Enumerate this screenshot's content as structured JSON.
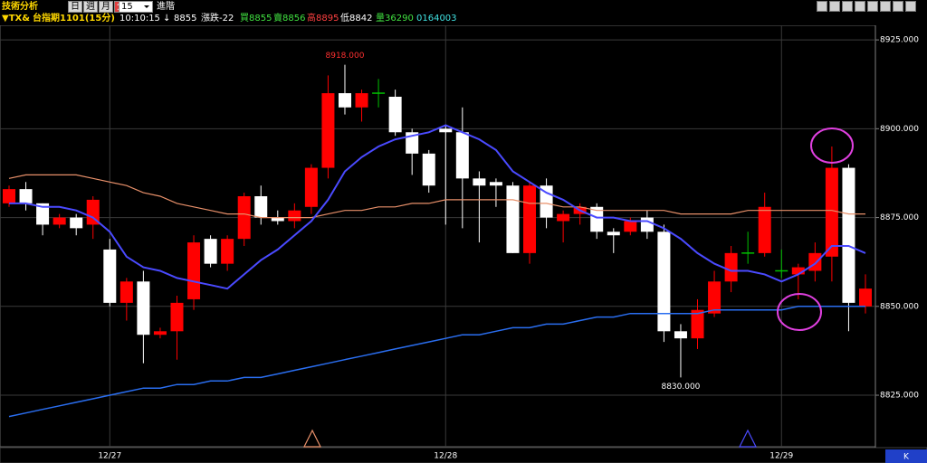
{
  "header": {
    "title": "技術分析",
    "periods": [
      "日",
      "週",
      "月",
      "分"
    ],
    "interval": "15",
    "advanced": "進階",
    "symbol": "TX&",
    "name": "台指期1101(15分)",
    "time": "10:10:15",
    "arrow": "↓",
    "price": "8855",
    "change": "漲跌-22",
    "bid": "買8855",
    "ask": "賣8856",
    "high": "高8895",
    "low": "低8842",
    "volume": "量36290",
    "code": "0164003"
  },
  "chart_data": {
    "type": "candlestick",
    "categories": [
      null,
      null,
      null,
      null,
      null,
      null,
      "12/27",
      null,
      null,
      null,
      null,
      null,
      null,
      null,
      null,
      null,
      null,
      null,
      null,
      null,
      null,
      null,
      null,
      null,
      null,
      null,
      "12/28",
      null,
      null,
      null,
      null,
      null,
      null,
      null,
      null,
      null,
      null,
      null,
      null,
      null,
      null,
      null,
      null,
      null,
      null,
      null,
      "12/29",
      null,
      null,
      null,
      null,
      null
    ],
    "open": [
      8879,
      8883,
      8879,
      8873,
      8875,
      8873,
      8866,
      8851,
      8857,
      8842,
      8843,
      8852,
      8869,
      8862,
      8869,
      8881,
      8875,
      8874,
      8878,
      8889,
      8910,
      8906,
      8910,
      8909,
      8899,
      8893,
      8900,
      8899,
      8886,
      8885,
      8884,
      8865,
      8884,
      8874,
      8876,
      8878,
      8871,
      8871,
      8875,
      8871,
      8843,
      8841,
      8848,
      8857,
      8865,
      8865,
      8860,
      8859,
      8860,
      8864,
      8889,
      8850
    ],
    "high": [
      8884,
      8885,
      8879,
      8876,
      8876,
      8881,
      8869,
      8858,
      8860,
      8844,
      8853,
      8870,
      8870,
      8870,
      8882,
      8884,
      8877,
      8879,
      8890,
      8915,
      8918,
      8911,
      8914,
      8911,
      8900,
      8894,
      8901,
      8906,
      8888,
      8886,
      8885,
      8885,
      8886,
      8877,
      8879,
      8879,
      8872,
      8875,
      8877,
      8873,
      8845,
      8852,
      8860,
      8867,
      8871,
      8882,
      8866,
      8862,
      8868,
      8895,
      8890,
      8859
    ],
    "low": [
      8878,
      8877,
      8870,
      8872,
      8870,
      8869,
      8850,
      8846,
      8834,
      8841,
      8835,
      8849,
      8861,
      8860,
      8867,
      8873,
      8873,
      8872,
      8876,
      8886,
      8904,
      8902,
      8906,
      8898,
      8887,
      8882,
      8873,
      8872,
      8868,
      8878,
      8865,
      8862,
      8872,
      8868,
      8873,
      8869,
      8865,
      8870,
      8869,
      8840,
      8830,
      8838,
      8847,
      8854,
      8862,
      8864,
      8858,
      8852,
      8857,
      8857,
      8843,
      8848
    ],
    "close": [
      8883,
      8879,
      8873,
      8875,
      8872,
      8880,
      8851,
      8857,
      8842,
      8843,
      8851,
      8868,
      8862,
      8869,
      8881,
      8875,
      8874,
      8877,
      8889,
      8910,
      8906,
      8910,
      8910,
      8899,
      8893,
      8884,
      8899,
      8886,
      8884,
      8884,
      8865,
      8884,
      8875,
      8876,
      8878,
      8871,
      8870,
      8874,
      8871,
      8843,
      8841,
      8849,
      8857,
      8865,
      8865,
      8878,
      8860,
      8861,
      8865,
      8889,
      8851,
      8855
    ],
    "up_color": "#ff0000",
    "down_color": "#ffffff",
    "flat_color": "#00c000",
    "lines": [
      {
        "color": "#e8906a",
        "width": 1.2,
        "values": [
          8886,
          8887,
          8887,
          8887,
          8887,
          8886,
          8885,
          8884,
          8882,
          8881,
          8879,
          8878,
          8877,
          8876,
          8876,
          8875,
          8875,
          8875,
          8875,
          8876,
          8877,
          8877,
          8878,
          8878,
          8879,
          8879,
          8880,
          8880,
          8880,
          8880,
          8880,
          8879,
          8879,
          8878,
          8878,
          8877,
          8877,
          8877,
          8877,
          8877,
          8876,
          8876,
          8876,
          8876,
          8877,
          8877,
          8877,
          8877,
          8877,
          8877,
          8876,
          8876
        ]
      },
      {
        "color": "#2a6ef0",
        "width": 1.5,
        "values": [
          8819,
          8820,
          8821,
          8822,
          8823,
          8824,
          8825,
          8826,
          8827,
          8827,
          8828,
          8828,
          8829,
          8829,
          8830,
          8830,
          8831,
          8832,
          8833,
          8834,
          8835,
          8836,
          8837,
          8838,
          8839,
          8840,
          8841,
          8842,
          8842,
          8843,
          8844,
          8844,
          8845,
          8845,
          8846,
          8847,
          8847,
          8848,
          8848,
          8848,
          8848,
          8848,
          8849,
          8849,
          8849,
          8849,
          8849,
          8850,
          8850,
          8850,
          8850,
          8850
        ]
      },
      {
        "color": "#4a4aff",
        "width": 2,
        "values": [
          8879,
          8879,
          8878,
          8878,
          8877,
          8875,
          8871,
          8864,
          8861,
          8860,
          8858,
          8857,
          8856,
          8855,
          8859,
          8863,
          8866,
          8870,
          8874,
          8880,
          8888,
          8892,
          8895,
          8897,
          8898,
          8899,
          8901,
          8899,
          8897,
          8894,
          8888,
          8885,
          8882,
          8880,
          8877,
          8875,
          8875,
          8874,
          8874,
          8872,
          8869,
          8865,
          8862,
          8860,
          8860,
          8859,
          8857,
          8859,
          8862,
          8867,
          8867,
          8865
        ]
      }
    ],
    "ylim": [
      8810.5,
      8929.1
    ],
    "yticks": [
      {
        "value": 8825,
        "label": "8825.000"
      },
      {
        "value": 8850,
        "label": "8850.000"
      },
      {
        "value": 8875,
        "label": "8875.000"
      },
      {
        "value": 8900,
        "label": "8900.000"
      },
      {
        "value": 8925,
        "label": "8925.000"
      }
    ],
    "grid": true,
    "annotations": {
      "high": {
        "value": 8918,
        "label": "8918.000"
      },
      "low": {
        "value": 8830,
        "label": "8830.000"
      }
    }
  },
  "footer": {
    "mode": "K"
  }
}
